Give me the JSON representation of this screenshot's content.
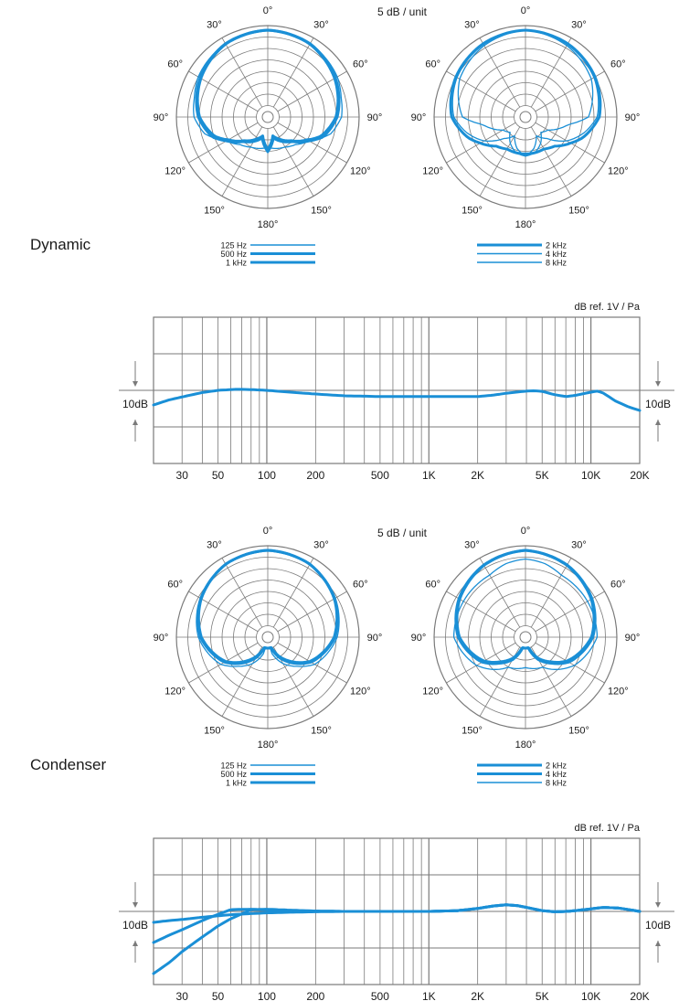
{
  "sections": [
    {
      "label": "Dynamic",
      "polar_scale_label": "5 dB / unit",
      "angle_labels": [
        "0°",
        "30°",
        "60°",
        "90°",
        "120°",
        "150°",
        "180°",
        "150°",
        "120°",
        "90°",
        "60°",
        "30°"
      ],
      "legend_left": [
        "125 Hz",
        "500 Hz",
        "1 kHz"
      ],
      "legend_right": [
        "2 kHz",
        "4 kHz",
        "8 kHz"
      ],
      "freq_ylabel": "dB ref. 1V / Pa",
      "freq_side_label": "10dB",
      "freq_ticks": [
        "30",
        "50",
        "100",
        "200",
        "500",
        "1K",
        "2K",
        "5K",
        "10K",
        "20K"
      ]
    },
    {
      "label": "Condenser",
      "polar_scale_label": "5 dB / unit",
      "angle_labels": [
        "0°",
        "30°",
        "60°",
        "90°",
        "120°",
        "150°",
        "180°",
        "150°",
        "120°",
        "90°",
        "60°",
        "30°"
      ],
      "legend_left": [
        "125 Hz",
        "500 Hz",
        "1 kHz"
      ],
      "legend_right": [
        "2 kHz",
        "4 kHz",
        "8 kHz"
      ],
      "freq_ylabel": "dB ref. 1V / Pa",
      "freq_side_label": "10dB",
      "freq_ticks": [
        "30",
        "50",
        "100",
        "200",
        "500",
        "1K",
        "2K",
        "5K",
        "10K",
        "20K"
      ]
    }
  ],
  "colors": {
    "curve": "#1a8fd6",
    "grid": "#7a7a7a",
    "text": "#1a1a1a"
  },
  "chart_data": [
    {
      "type": "polar",
      "section": "Dynamic",
      "unit": "5 dB / unit",
      "series": [
        {
          "name": "125 Hz",
          "stroke": "thin",
          "angles_deg": [
            0,
            30,
            60,
            75,
            90,
            105,
            120,
            135,
            150,
            165,
            180
          ],
          "level_db": [
            0,
            -0.5,
            -1.5,
            -2.5,
            -3,
            -5,
            -9,
            -11,
            -12,
            -12.5,
            -13
          ]
        },
        {
          "name": "500 Hz",
          "stroke": "thick",
          "angles_deg": [
            0,
            30,
            60,
            90,
            110,
            120,
            135,
            150,
            165,
            180
          ],
          "level_db": [
            0,
            -0.5,
            -2,
            -4,
            -6.5,
            -9,
            -12,
            -13.5,
            -15,
            -12
          ]
        },
        {
          "name": "1 kHz",
          "stroke": "thick",
          "angles_deg": [
            0,
            30,
            60,
            90,
            110,
            120,
            135,
            150,
            165,
            180
          ],
          "level_db": [
            0,
            -0.6,
            -2.2,
            -4.3,
            -7,
            -9.5,
            -12.3,
            -14,
            -15.5,
            -12.5
          ]
        }
      ]
    },
    {
      "type": "polar",
      "section": "Dynamic",
      "unit": "5 dB / unit",
      "series": [
        {
          "name": "2 kHz",
          "stroke": "thick",
          "angles_deg": [
            0,
            30,
            60,
            90,
            110,
            120,
            135,
            150,
            165,
            180
          ],
          "level_db": [
            0,
            -0.5,
            -1.5,
            -3,
            -6,
            -8,
            -10.5,
            -11.5,
            -11.5,
            -11.5
          ]
        },
        {
          "name": "4 kHz",
          "stroke": "thin",
          "angles_deg": [
            0,
            30,
            60,
            90,
            105,
            120,
            135,
            150,
            165,
            180
          ],
          "level_db": [
            0,
            -0.7,
            -1.8,
            -3.5,
            -6,
            -9,
            -13,
            -15,
            -12.5,
            -11
          ]
        },
        {
          "name": "8 kHz",
          "stroke": "thin",
          "angles_deg": [
            0,
            30,
            60,
            90,
            100,
            120,
            135,
            150,
            165,
            180
          ],
          "level_db": [
            0,
            -1,
            -2.5,
            -5.5,
            -10,
            -14,
            -15,
            -13,
            -11.5,
            -11
          ]
        }
      ]
    },
    {
      "type": "line",
      "section": "Dynamic",
      "x": [
        20,
        25,
        30,
        40,
        50,
        65,
        80,
        100,
        150,
        200,
        300,
        400,
        500,
        700,
        1000,
        1500,
        2000,
        2500,
        3000,
        4000,
        4500,
        5000,
        6000,
        7000,
        8000,
        9000,
        10000,
        11000,
        12000,
        14000,
        17000,
        20000
      ],
      "series": [
        {
          "name": "",
          "values": [
            -4,
            -2.6,
            -1.8,
            -0.6,
            0,
            0.3,
            0.2,
            0,
            -0.6,
            -1,
            -1.5,
            -1.6,
            -1.7,
            -1.7,
            -1.7,
            -1.7,
            -1.7,
            -1.3,
            -0.8,
            -0.2,
            -0.1,
            -0.3,
            -1.2,
            -1.7,
            -1.4,
            -0.9,
            -0.5,
            -0.2,
            -0.8,
            -2.8,
            -4.5,
            -5.5
          ]
        }
      ],
      "ylabel": "dB ref. 1V / Pa",
      "xscale": "log",
      "xlim": [
        20,
        20000
      ],
      "ylim": [
        -20,
        20
      ]
    },
    {
      "type": "polar",
      "section": "Condenser",
      "unit": "5 dB / unit",
      "series": [
        {
          "name": "125 Hz",
          "stroke": "thin",
          "angles_deg": [
            0,
            30,
            60,
            90,
            120,
            135,
            150,
            165,
            180
          ],
          "level_db": [
            0,
            -0.5,
            -2,
            -4,
            -7.5,
            -10.5,
            -13,
            -16,
            -25
          ]
        },
        {
          "name": "500 Hz",
          "stroke": "thick",
          "angles_deg": [
            0,
            30,
            60,
            90,
            120,
            135,
            150,
            165,
            180
          ],
          "level_db": [
            0,
            -0.6,
            -2.2,
            -4.5,
            -8.5,
            -11.5,
            -14.5,
            -18,
            -25
          ]
        },
        {
          "name": "1 kHz",
          "stroke": "thick",
          "angles_deg": [
            0,
            30,
            60,
            90,
            120,
            135,
            150,
            165,
            180
          ],
          "level_db": [
            0,
            -0.6,
            -2.3,
            -4.7,
            -8.8,
            -12,
            -15,
            -18.5,
            -25
          ]
        }
      ]
    },
    {
      "type": "polar",
      "section": "Condenser",
      "unit": "5 dB / unit",
      "series": [
        {
          "name": "2 kHz",
          "stroke": "thick",
          "angles_deg": [
            0,
            30,
            60,
            90,
            120,
            135,
            150,
            165,
            180
          ],
          "level_db": [
            0,
            -0.8,
            -2.3,
            -4.5,
            -8.5,
            -11.5,
            -14,
            -17.5,
            -25
          ]
        },
        {
          "name": "4 kHz",
          "stroke": "thick",
          "angles_deg": [
            0,
            30,
            60,
            90,
            120,
            135,
            150,
            165,
            180
          ],
          "level_db": [
            0,
            -0.9,
            -2.5,
            -4.8,
            -9,
            -12,
            -14.5,
            -18,
            -25
          ]
        },
        {
          "name": "8 kHz",
          "stroke": "thin",
          "angles_deg": [
            0,
            15,
            30,
            60,
            90,
            120,
            135,
            150,
            165,
            180
          ],
          "level_db": [
            -2,
            -2.5,
            -3.5,
            -3.5,
            -3.5,
            -7,
            -9.5,
            -12,
            -12.5,
            -13
          ]
        }
      ]
    },
    {
      "type": "line",
      "section": "Condenser",
      "x": [
        20,
        25,
        30,
        40,
        50,
        60,
        80,
        100,
        150,
        200,
        300,
        500,
        1000,
        1500,
        2000,
        2500,
        3000,
        3500,
        4000,
        5000,
        6000,
        7000,
        8000,
        10000,
        12000,
        15000,
        20000
      ],
      "series": [
        {
          "name": "",
          "values": [
            -3,
            -2.5,
            -2.2,
            -1.6,
            -1.2,
            -0.9,
            -0.6,
            -0.4,
            -0.2,
            -0.1,
            0,
            0,
            0,
            0.2,
            0.8,
            1.5,
            1.8,
            1.6,
            1.1,
            0.2,
            -0.1,
            0,
            0.2,
            0.7,
            1.1,
            0.9,
            0
          ]
        },
        {
          "name": "",
          "values": [
            -8.5,
            -6.5,
            -5,
            -2.5,
            -0.8,
            0.5,
            0.6,
            0.4,
            0.2,
            0.1,
            0,
            0,
            0,
            0.2,
            0.8,
            1.5,
            1.8,
            1.6,
            1.1,
            0.2,
            -0.1,
            0,
            0.2,
            0.7,
            1.1,
            0.9,
            0
          ]
        },
        {
          "name": "",
          "values": [
            -17,
            -14,
            -11,
            -7,
            -4,
            -2,
            0.5,
            0.6,
            0.3,
            0.1,
            0,
            0,
            0,
            0.2,
            0.8,
            1.5,
            1.8,
            1.6,
            1.1,
            0.2,
            -0.1,
            0,
            0.2,
            0.7,
            1.1,
            0.9,
            0
          ]
        }
      ],
      "ylabel": "dB ref. 1V / Pa",
      "xscale": "log",
      "xlim": [
        20,
        20000
      ],
      "ylim": [
        -20,
        20
      ]
    }
  ]
}
